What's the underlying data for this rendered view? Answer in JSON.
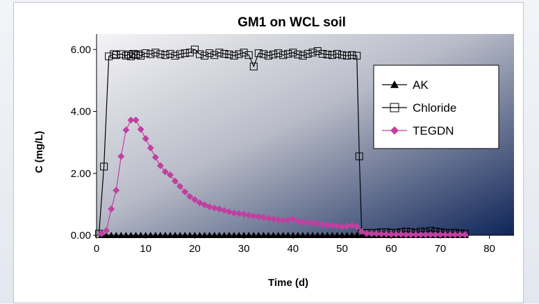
{
  "chart_data": {
    "type": "line",
    "title": "GM1 on WCL soil",
    "xlabel": "Time (d)",
    "ylabel": "C (mg/L)",
    "xlim": [
      0,
      85
    ],
    "ylim": [
      0,
      6.5
    ],
    "x_ticks": [
      "0",
      "10",
      "20",
      "30",
      "40",
      "50",
      "60",
      "70",
      "80"
    ],
    "y_ticks": [
      "0.00",
      "2.00",
      "4.00",
      "6.00"
    ],
    "legend_position": "right",
    "plot_background": "gradient light-gray to navy",
    "series": [
      {
        "name": "AK",
        "marker": "triangle",
        "color": "#000000",
        "x": [
          1,
          2,
          3,
          4,
          5,
          6,
          7,
          8,
          9,
          10,
          11,
          12,
          13,
          14,
          15,
          16,
          17,
          18,
          19,
          20,
          21,
          22,
          23,
          24,
          25,
          26,
          27,
          28,
          29,
          30,
          31,
          32,
          33,
          34,
          35,
          36,
          37,
          38,
          39,
          40,
          41,
          42,
          43,
          44,
          45,
          46,
          47,
          48,
          49,
          50,
          51,
          52,
          53,
          54,
          55,
          56,
          57,
          58,
          59,
          60,
          61,
          62,
          63,
          64,
          65,
          66,
          67,
          68,
          69,
          70,
          71,
          72,
          73,
          74,
          75
        ],
        "y": [
          0,
          0,
          0,
          0,
          0,
          0,
          0,
          0,
          0,
          0,
          0,
          0,
          0,
          0,
          0,
          0,
          0,
          0,
          0,
          0,
          0,
          0,
          0,
          0,
          0,
          0,
          0,
          0,
          0,
          0,
          0,
          0,
          0,
          0,
          0,
          0,
          0,
          0,
          0,
          0,
          0,
          0,
          0,
          0,
          0,
          0,
          0,
          0,
          0,
          0,
          0,
          0,
          0,
          0,
          0,
          0,
          0,
          0,
          0,
          0,
          0,
          0,
          0,
          0,
          0,
          0,
          0,
          0,
          0,
          0,
          0,
          0,
          0,
          0,
          0
        ]
      },
      {
        "name": "Chloride",
        "marker": "square",
        "color": "#000000",
        "x": [
          0.5,
          1.5,
          2.5,
          3.5,
          4,
          5,
          6,
          6.5,
          7,
          7.5,
          8,
          8.5,
          9,
          10,
          11,
          12,
          13,
          14,
          15,
          16,
          17,
          18,
          19,
          20,
          21,
          22,
          23,
          24,
          25,
          26,
          27,
          28,
          29,
          30,
          31,
          32,
          33,
          34,
          35,
          36,
          37,
          38,
          39,
          40,
          41,
          42,
          43,
          44,
          45,
          46,
          47,
          48,
          49,
          50,
          51,
          52,
          53,
          53.5,
          54,
          55,
          56,
          57,
          58,
          59,
          60,
          61,
          62,
          63,
          64,
          65,
          66,
          67,
          68,
          69,
          70,
          71,
          72,
          73,
          74,
          75
        ],
        "y": [
          0.05,
          2.22,
          5.78,
          5.85,
          5.82,
          5.85,
          5.8,
          5.84,
          5.78,
          5.86,
          5.82,
          5.85,
          5.8,
          5.88,
          5.85,
          5.9,
          5.85,
          5.82,
          5.86,
          5.8,
          5.85,
          5.88,
          5.9,
          6.0,
          5.85,
          5.8,
          5.88,
          5.82,
          5.9,
          5.86,
          5.84,
          5.8,
          5.85,
          5.9,
          5.82,
          5.45,
          5.88,
          5.85,
          5.8,
          5.84,
          5.88,
          5.82,
          5.86,
          5.9,
          5.84,
          5.8,
          5.86,
          5.9,
          5.95,
          5.86,
          5.84,
          5.82,
          5.86,
          5.82,
          5.8,
          5.82,
          5.8,
          2.55,
          0.05,
          0.08,
          0.08,
          0.08,
          0.1,
          0.1,
          0.08,
          0.08,
          0.1,
          0.12,
          0.1,
          0.08,
          0.12,
          0.1,
          0.15,
          0.12,
          0.1,
          0.08,
          0.08,
          0.08,
          0.06,
          0.05
        ]
      },
      {
        "name": "TEGDN",
        "marker": "diamond",
        "color": "#c040a0",
        "x": [
          1,
          2,
          3,
          4,
          5,
          6,
          7,
          8,
          9,
          10,
          11,
          12,
          13,
          14,
          15,
          16,
          17,
          18,
          19,
          20,
          21,
          22,
          23,
          24,
          25,
          26,
          27,
          28,
          29,
          30,
          31,
          32,
          33,
          34,
          35,
          36,
          37,
          38,
          39,
          40,
          41,
          42,
          43,
          44,
          45,
          46,
          47,
          48,
          49,
          50,
          51,
          52,
          53,
          54,
          55,
          56,
          57,
          58,
          59,
          60,
          61,
          62,
          63,
          64,
          65,
          66,
          67,
          68,
          69,
          70,
          71,
          72,
          73,
          74,
          75
        ],
        "y": [
          0.05,
          0.15,
          0.85,
          1.45,
          2.55,
          3.4,
          3.72,
          3.72,
          3.42,
          3.12,
          2.82,
          2.52,
          2.25,
          2.05,
          1.95,
          1.75,
          1.58,
          1.4,
          1.25,
          1.15,
          1.05,
          0.98,
          0.92,
          0.88,
          0.85,
          0.8,
          0.76,
          0.72,
          0.7,
          0.68,
          0.65,
          0.62,
          0.6,
          0.58,
          0.55,
          0.52,
          0.5,
          0.48,
          0.5,
          0.52,
          0.45,
          0.42,
          0.4,
          0.4,
          0.38,
          0.35,
          0.32,
          0.32,
          0.3,
          0.28,
          0.3,
          0.32,
          0.28,
          0.12,
          0.06,
          0.05,
          0.05,
          0.04,
          0.04,
          0.03,
          0.03,
          0.03,
          0.02,
          0.02,
          0.02,
          0.02,
          0.02,
          0.02,
          0.02,
          0.02,
          0.02,
          0.02,
          0.02,
          0.02,
          0.02
        ]
      }
    ]
  }
}
